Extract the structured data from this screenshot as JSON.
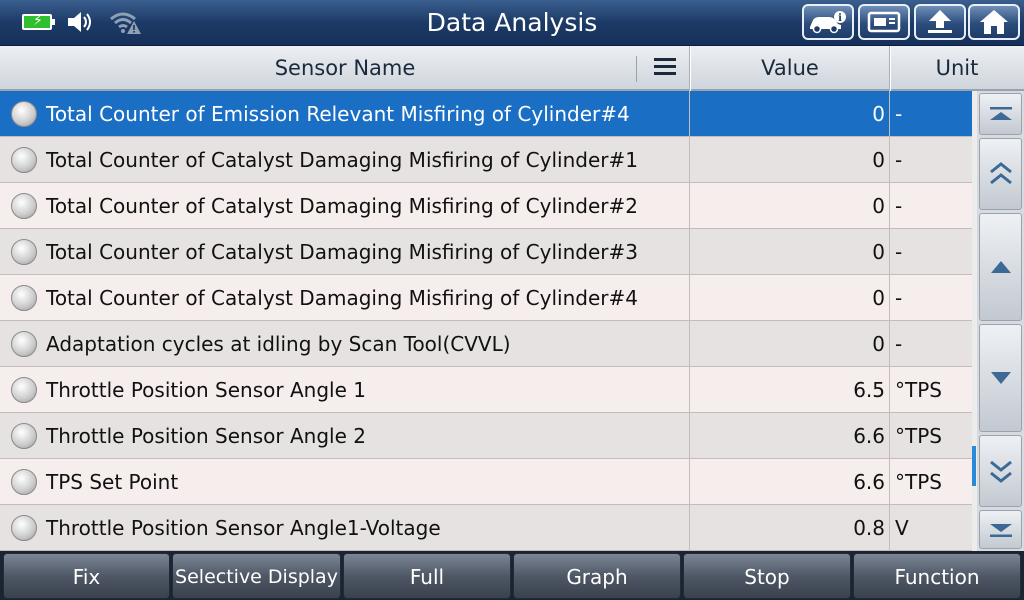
{
  "header": {
    "title": "Data Analysis"
  },
  "table": {
    "columns": {
      "sensor_name": "Sensor Name",
      "value": "Value",
      "unit": "Unit"
    },
    "rows": [
      {
        "name": "Total Counter of Emission Relevant Misfiring of Cylinder#4",
        "value": "0",
        "unit": "-"
      },
      {
        "name": "Total Counter of Catalyst Damaging Misfiring of Cylinder#1",
        "value": "0",
        "unit": "-"
      },
      {
        "name": "Total Counter of Catalyst Damaging Misfiring of Cylinder#2",
        "value": "0",
        "unit": "-"
      },
      {
        "name": "Total Counter of Catalyst Damaging Misfiring of Cylinder#3",
        "value": "0",
        "unit": "-"
      },
      {
        "name": "Total Counter of Catalyst Damaging Misfiring of Cylinder#4",
        "value": "0",
        "unit": "-"
      },
      {
        "name": "Adaptation cycles at idling by Scan Tool(CVVL)",
        "value": "0",
        "unit": "-"
      },
      {
        "name": "Throttle Position Sensor Angle 1",
        "value": "6.5",
        "unit": "°TPS"
      },
      {
        "name": "Throttle Position Sensor Angle 2",
        "value": "6.6",
        "unit": "°TPS"
      },
      {
        "name": "TPS Set Point",
        "value": "6.6",
        "unit": "°TPS"
      },
      {
        "name": "Throttle Position Sensor Angle1-Voltage",
        "value": "0.8",
        "unit": "V"
      }
    ]
  },
  "toolbar": {
    "fix": "Fix",
    "selective_display": "Selective Display",
    "full": "Full",
    "graph": "Graph",
    "stop": "Stop",
    "function": "Function"
  },
  "colors": {
    "selected_row": "#1a6fc4",
    "title_bar": "#1d3a66"
  },
  "icons": {
    "status": [
      "battery-charging-icon",
      "speaker-icon",
      "wifi-warning-icon"
    ],
    "header_buttons": [
      "vehicle-info-icon",
      "print-icon",
      "back-icon",
      "home-icon"
    ],
    "scroll_buttons": [
      "scroll-top-icon",
      "page-up-icon",
      "up-icon",
      "down-icon",
      "page-down-icon",
      "scroll-bottom-icon"
    ]
  }
}
